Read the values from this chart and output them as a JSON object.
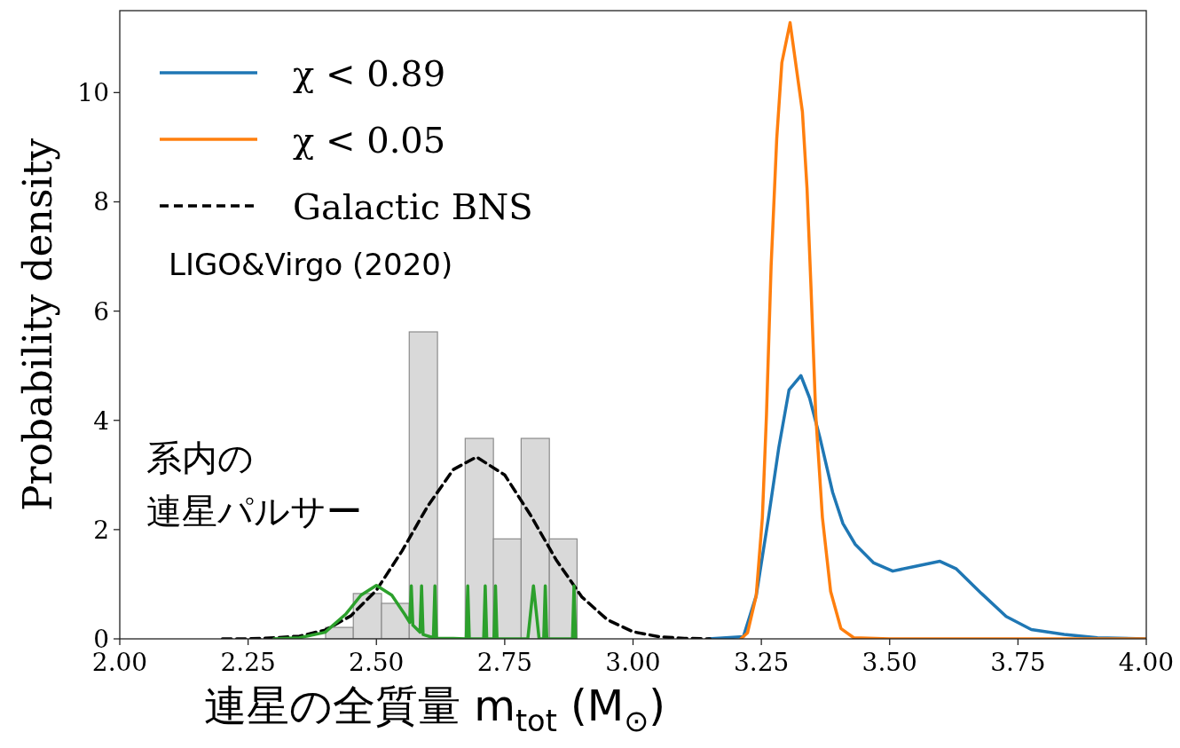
{
  "chart_data": {
    "type": "line",
    "xlabel": "連星の全質量 m$_{tot}$ (M$_{⊙}$)",
    "ylabel": "Probability density",
    "xlim": [
      2.0,
      4.0
    ],
    "ylim": [
      0,
      11.5
    ],
    "xticks": [
      {
        "value": 2.0,
        "label": "2.00"
      },
      {
        "value": 2.25,
        "label": "2.25"
      },
      {
        "value": 2.5,
        "label": "2.50"
      },
      {
        "value": 2.75,
        "label": "2.75"
      },
      {
        "value": 3.0,
        "label": "3.00"
      },
      {
        "value": 3.25,
        "label": "3.25"
      },
      {
        "value": 3.5,
        "label": "3.50"
      },
      {
        "value": 3.75,
        "label": "3.75"
      },
      {
        "value": 4.0,
        "label": "4.00"
      }
    ],
    "yticks": [
      0,
      2,
      4,
      6,
      8,
      10
    ],
    "legend": "top left",
    "annotations": [
      "LIGO&Virgo (2020)",
      "系内の",
      "連星パルサー"
    ],
    "series": [
      {
        "type": "histogram",
        "color": "#d9d9d9",
        "bins": [
          2.401,
          2.455,
          2.51,
          2.564,
          2.619,
          2.673,
          2.728,
          2.782,
          2.837,
          2.891
        ],
        "values": [
          0.21,
          0.83,
          0.65,
          5.62,
          0,
          3.67,
          1.83,
          3.67,
          1.83
        ]
      },
      {
        "name": "χ < 0.89",
        "color": "#1f77b4",
        "x": [
          3.147,
          3.215,
          3.24,
          3.264,
          3.284,
          3.304,
          3.327,
          3.344,
          3.365,
          3.389,
          3.409,
          3.433,
          3.469,
          3.506,
          3.546,
          3.598,
          3.63,
          3.679,
          3.727,
          3.776,
          3.84,
          3.905,
          4.0
        ],
        "values": [
          0,
          0.04,
          0.79,
          2.22,
          3.5,
          4.56,
          4.82,
          4.41,
          3.65,
          2.68,
          2.11,
          1.73,
          1.39,
          1.24,
          1.32,
          1.42,
          1.28,
          0.83,
          0.41,
          0.17,
          0.08,
          0.02,
          0
        ]
      },
      {
        "name": "χ < 0.05",
        "color": "#ff7f0e",
        "x": [
          3.21,
          3.223,
          3.24,
          3.252,
          3.26,
          3.269,
          3.28,
          3.29,
          3.306,
          3.33,
          3.339,
          3.347,
          3.356,
          3.369,
          3.385,
          3.405,
          3.43,
          3.5,
          4.0
        ],
        "values": [
          0,
          0.11,
          0.79,
          2.22,
          4.1,
          6.82,
          9.16,
          10.55,
          11.28,
          9.65,
          8.25,
          6.37,
          4.1,
          2.22,
          0.87,
          0.19,
          0.02,
          0,
          0
        ]
      },
      {
        "name": "Galactic BNS",
        "color": "#000000",
        "line_style": "dashed",
        "x": [
          2.2,
          2.25,
          2.3,
          2.35,
          2.4,
          2.45,
          2.5,
          2.55,
          2.6,
          2.65,
          2.695,
          2.75,
          2.8,
          2.85,
          2.9,
          2.95,
          3.0,
          3.05,
          3.1,
          3.15
        ],
        "values": [
          0,
          0,
          0.02,
          0.05,
          0.16,
          0.42,
          0.89,
          1.61,
          2.43,
          3.1,
          3.33,
          3.0,
          2.27,
          1.45,
          0.77,
          0.35,
          0.13,
          0.04,
          0.01,
          0
        ]
      },
      {
        "color": "#2ca02c",
        "x": [
          2.3,
          2.35,
          2.4,
          2.44,
          2.47,
          2.5,
          2.53,
          2.555,
          2.565,
          2.568,
          2.571,
          2.585,
          2.588,
          2.591,
          2.611,
          2.614,
          2.617,
          2.65,
          2.675,
          2.678,
          2.681,
          2.709,
          2.712,
          2.715,
          2.729,
          2.732,
          2.735,
          2.795,
          2.806,
          2.817,
          2.826,
          2.829,
          2.832,
          2.882,
          2.885,
          2.888
        ],
        "values": [
          0,
          0.02,
          0.12,
          0.45,
          0.8,
          0.98,
          0.8,
          0.45,
          0.3,
          0.97,
          0.25,
          0.12,
          0.97,
          0.08,
          0.02,
          0.97,
          0.01,
          0.01,
          0,
          0.97,
          0,
          0,
          0.97,
          0,
          0,
          0.97,
          0,
          0,
          0.97,
          0,
          0,
          0.97,
          0,
          0,
          0.97,
          0
        ]
      }
    ]
  }
}
